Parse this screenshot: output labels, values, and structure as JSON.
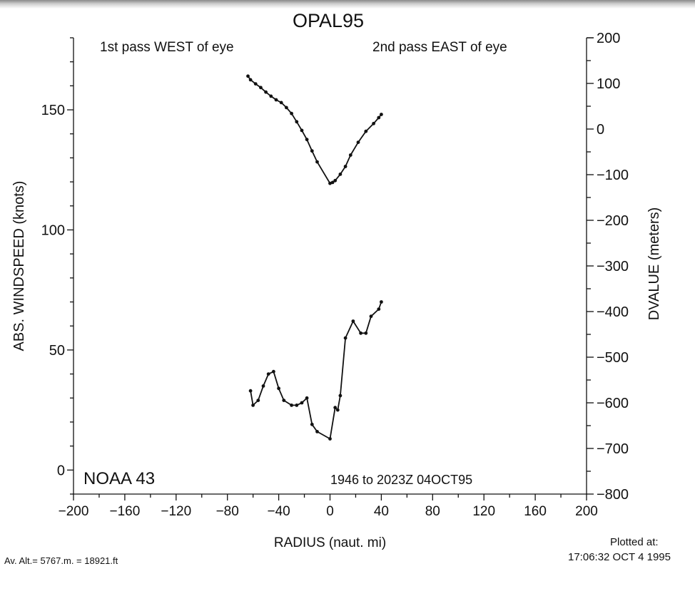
{
  "title": "OPAL95",
  "footer": {
    "altitude": "Av. Alt.= 5767.m. = 18921.ft",
    "plotted_label": "Plotted at:",
    "plotted_time": "17:06:32 OCT  4 1995"
  },
  "chart_data": {
    "type": "line",
    "title": "OPAL95",
    "xlabel": "RADIUS (naut. mi)",
    "ylabel_left": "ABS. WINDSPEED (knots)",
    "ylabel_right": "DVALUE (meters)",
    "xlim": [
      -200,
      200
    ],
    "ylim_left": [
      -10,
      180
    ],
    "ylim_right": [
      -800,
      200
    ],
    "x_ticks": [
      -200,
      -160,
      -120,
      -80,
      -40,
      0,
      40,
      80,
      120,
      160,
      200
    ],
    "y_left_ticks": [
      0,
      50,
      100,
      150
    ],
    "y_right_ticks": [
      200,
      100,
      0,
      -100,
      -200,
      -300,
      -400,
      -500,
      -600,
      -700,
      -800
    ],
    "tick_labels": {
      "x": [
        "−200",
        "−160",
        "−120",
        "−80",
        "−40",
        "0",
        "40",
        "80",
        "120",
        "160",
        "200"
      ],
      "y_left": [
        "0",
        "50",
        "100",
        "150"
      ],
      "y_right": [
        "200",
        "100",
        "0",
        "−100",
        "−200",
        "−300",
        "−400",
        "−500",
        "−600",
        "−700",
        "−800"
      ]
    },
    "annotations": {
      "top_left": "1st pass WEST of eye",
      "top_right": "2nd pass EAST of eye",
      "bottom_left": "NOAA 43",
      "bottom_right": "1946 to 2023Z 04OCT95"
    },
    "grid": false,
    "series": [
      {
        "axis": "right",
        "x": [
          -64,
          -62,
          -58,
          -54,
          -50,
          -46,
          -42,
          -38,
          -34,
          -30,
          -26,
          -22,
          -18,
          -14,
          -10,
          0,
          2,
          4,
          8,
          12,
          16,
          22,
          28,
          34,
          38,
          40
        ],
        "values": [
          116,
          108,
          99,
          91,
          81,
          72,
          64,
          58,
          47,
          34,
          16,
          -3,
          -23,
          -48,
          -72,
          -119,
          -117,
          -113,
          -99,
          -82,
          -57,
          -29,
          -5,
          12,
          25,
          32
        ]
      },
      {
        "axis": "left",
        "x": [
          -62,
          -60,
          -56,
          -52,
          -48,
          -44,
          -40,
          -36,
          -30,
          -26,
          -22,
          -18,
          -14,
          -10,
          0,
          4,
          6,
          8,
          12,
          18,
          24,
          28,
          32,
          38,
          40
        ],
        "values": [
          33,
          27,
          29,
          35,
          40,
          41,
          34,
          29,
          27,
          27,
          28,
          30,
          19,
          16,
          13,
          26,
          25,
          31,
          55,
          62,
          57,
          57,
          64,
          67,
          70
        ]
      }
    ]
  }
}
